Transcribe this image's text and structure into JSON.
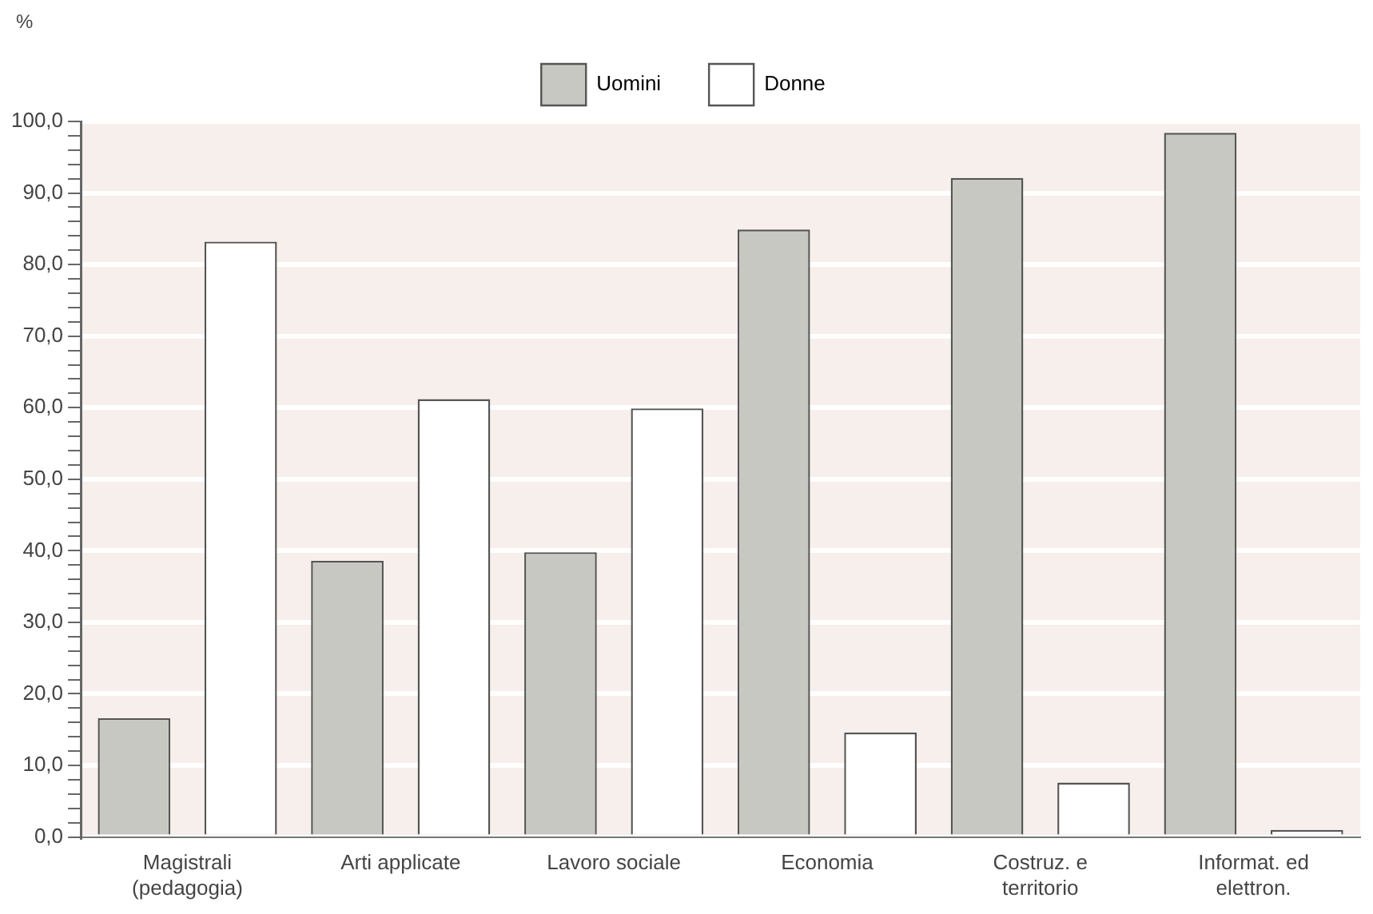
{
  "chart_data": {
    "type": "bar",
    "ylabel": "%",
    "categories": [
      "Magistrali (pedagogia)",
      "Arti applicate",
      "Lavoro sociale",
      "Economia",
      "Costruz. e territorio",
      "Informat. ed elettron."
    ],
    "series": [
      {
        "name": "Uomini",
        "color": "#c8c8c2",
        "values": [
          16.6,
          38.6,
          39.8,
          84.9,
          92.1,
          98.4
        ]
      },
      {
        "name": "Donne",
        "color": "#ffffff",
        "values": [
          83.2,
          61.2,
          59.9,
          14.6,
          7.6,
          1.0
        ]
      }
    ],
    "ylim": [
      0,
      100
    ],
    "yticks": [
      {
        "value": 0,
        "label": "0,0"
      },
      {
        "value": 2,
        "label": null
      },
      {
        "value": 4,
        "label": null
      },
      {
        "value": 6,
        "label": null
      },
      {
        "value": 8,
        "label": null
      },
      {
        "value": 10,
        "label": "10,0"
      },
      {
        "value": 12,
        "label": null
      },
      {
        "value": 14,
        "label": null
      },
      {
        "value": 16,
        "label": null
      },
      {
        "value": 18,
        "label": null
      },
      {
        "value": 20,
        "label": "20,0"
      },
      {
        "value": 22,
        "label": null
      },
      {
        "value": 24,
        "label": null
      },
      {
        "value": 26,
        "label": null
      },
      {
        "value": 28,
        "label": null
      },
      {
        "value": 30,
        "label": "30,0"
      },
      {
        "value": 32,
        "label": null
      },
      {
        "value": 34,
        "label": null
      },
      {
        "value": 36,
        "label": null
      },
      {
        "value": 38,
        "label": null
      },
      {
        "value": 40,
        "label": "40,0"
      },
      {
        "value": 42,
        "label": null
      },
      {
        "value": 44,
        "label": null
      },
      {
        "value": 46,
        "label": null
      },
      {
        "value": 48,
        "label": null
      },
      {
        "value": 50,
        "label": "50,0"
      },
      {
        "value": 52,
        "label": null
      },
      {
        "value": 54,
        "label": null
      },
      {
        "value": 56,
        "label": null
      },
      {
        "value": 58,
        "label": null
      },
      {
        "value": 60,
        "label": "60,0"
      },
      {
        "value": 62,
        "label": null
      },
      {
        "value": 64,
        "label": null
      },
      {
        "value": 66,
        "label": null
      },
      {
        "value": 68,
        "label": null
      },
      {
        "value": 70,
        "label": "70,0"
      },
      {
        "value": 72,
        "label": null
      },
      {
        "value": 74,
        "label": null
      },
      {
        "value": 76,
        "label": null
      },
      {
        "value": 78,
        "label": null
      },
      {
        "value": 80,
        "label": "80,0"
      },
      {
        "value": 82,
        "label": null
      },
      {
        "value": 84,
        "label": null
      },
      {
        "value": 86,
        "label": null
      },
      {
        "value": 88,
        "label": null
      },
      {
        "value": 90,
        "label": "90,0"
      },
      {
        "value": 92,
        "label": null
      },
      {
        "value": 94,
        "label": null
      },
      {
        "value": 96,
        "label": null
      },
      {
        "value": 98,
        "label": null
      },
      {
        "value": 100,
        "label": "100,0"
      }
    ],
    "grid": "y",
    "legend": "top"
  }
}
